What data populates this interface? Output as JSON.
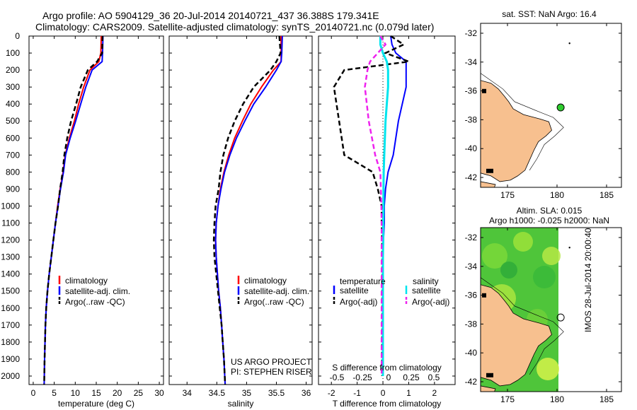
{
  "header": {
    "line1": "Argo profile: AO 5904129_36 20-Jul-2014 20140721_437 36.388S 179.341E",
    "line2": "Climatology: CARS2009. Satellite-adjusted climatology: synTS_20140721.nc (0.079d later)"
  },
  "colors": {
    "climatology": "#ff0000",
    "satellite": "#0000ff",
    "argo": "#000000",
    "sal_satellite": "#00e5ee",
    "sal_argo": "#ee22ee",
    "land": "#f7c08f",
    "marker": "#2ecc2e"
  },
  "depth_axis": {
    "ticks": [
      0,
      100,
      200,
      300,
      400,
      500,
      600,
      700,
      800,
      900,
      1000,
      1100,
      1200,
      1300,
      1400,
      1500,
      1600,
      1700,
      1800,
      1900,
      2000
    ],
    "range": [
      0,
      2050
    ]
  },
  "chart_data": [
    {
      "type": "line",
      "panel": "temperature",
      "xlabel": "temperature (deg C)",
      "xlim": [
        -1,
        31
      ],
      "xticks": [
        0,
        5,
        10,
        15,
        20,
        25,
        30
      ],
      "legend": [
        "climatology",
        "satellite-adj. clim.",
        "Argo(..raw -QC)"
      ],
      "series": [
        {
          "name": "climatology",
          "x": [
            16.2,
            16.1,
            15.6,
            13.5,
            12.0,
            10.8,
            9.8,
            8.6,
            7.6,
            7.1,
            6.4,
            5.8,
            5.3,
            4.8,
            4.3,
            3.8,
            3.4,
            3.1,
            2.9,
            2.8,
            2.7,
            2.6
          ],
          "y": [
            0,
            100,
            150,
            200,
            300,
            400,
            500,
            600,
            700,
            800,
            900,
            1000,
            1100,
            1200,
            1300,
            1400,
            1500,
            1600,
            1700,
            1800,
            1900,
            2050
          ]
        },
        {
          "name": "satellite-adj. clim.",
          "x": [
            16.6,
            16.5,
            16.4,
            14.0,
            12.5,
            11.3,
            10.1,
            8.8,
            7.7,
            7.2,
            6.5,
            5.9,
            5.3,
            4.8,
            4.3,
            3.8,
            3.4,
            3.1,
            2.9,
            2.8,
            2.7,
            2.6
          ],
          "y": [
            0,
            100,
            150,
            200,
            300,
            400,
            500,
            600,
            700,
            800,
            900,
            1000,
            1100,
            1200,
            1300,
            1400,
            1500,
            1600,
            1700,
            1800,
            1900,
            2050
          ]
        },
        {
          "name": "Argo(..raw -QC)",
          "x": [
            16.5,
            16.4,
            15.2,
            13.0,
            11.3,
            10.2,
            9.0,
            8.1,
            7.4,
            7.0,
            6.4,
            5.9,
            5.3,
            4.8,
            4.3,
            3.8,
            3.4,
            3.1,
            2.9,
            2.8,
            2.7,
            2.6
          ],
          "y": [
            0,
            100,
            150,
            200,
            300,
            400,
            500,
            600,
            700,
            800,
            900,
            1000,
            1100,
            1200,
            1300,
            1400,
            1500,
            1600,
            1700,
            1800,
            1900,
            2050
          ]
        }
      ]
    },
    {
      "type": "line",
      "panel": "salinity",
      "xlabel": "salinity",
      "xlim": [
        33.7,
        36.1
      ],
      "xticks": [
        34,
        34.5,
        35,
        35.5,
        36
      ],
      "legend": [
        "climatology",
        "satellite-adj. clim.",
        "Argo(..raw -QC)"
      ],
      "annotation": [
        "US ARGO PROJECT",
        "PI: STEPHEN RISER"
      ],
      "series": [
        {
          "name": "climatology",
          "x": [
            35.58,
            35.58,
            35.58,
            35.45,
            35.25,
            35.07,
            34.93,
            34.8,
            34.7,
            34.62,
            34.56,
            34.52,
            34.49,
            34.48,
            34.49,
            34.51,
            34.53,
            34.56,
            34.58,
            34.6,
            34.62,
            34.64
          ],
          "y": [
            0,
            100,
            150,
            200,
            300,
            400,
            500,
            600,
            700,
            800,
            900,
            1000,
            1100,
            1200,
            1300,
            1400,
            1500,
            1600,
            1700,
            1800,
            1900,
            2050
          ]
        },
        {
          "name": "satellite-adj. clim.",
          "x": [
            35.6,
            35.59,
            35.58,
            35.5,
            35.32,
            35.12,
            34.97,
            34.83,
            34.72,
            34.63,
            34.57,
            34.52,
            34.49,
            34.48,
            34.49,
            34.51,
            34.53,
            34.56,
            34.58,
            34.6,
            34.62,
            34.64
          ],
          "y": [
            0,
            100,
            150,
            200,
            300,
            400,
            500,
            600,
            700,
            800,
            900,
            1000,
            1100,
            1200,
            1300,
            1400,
            1500,
            1600,
            1700,
            1800,
            1900,
            2050
          ]
        },
        {
          "name": "Argo(..raw -QC)",
          "x": [
            35.55,
            35.57,
            35.5,
            35.4,
            35.12,
            34.94,
            34.8,
            34.69,
            34.61,
            34.56,
            34.53,
            34.48,
            34.46,
            34.45,
            34.46,
            34.49,
            34.52,
            34.55,
            34.58,
            34.6,
            34.62,
            34.64
          ],
          "y": [
            0,
            100,
            150,
            200,
            300,
            400,
            500,
            600,
            700,
            800,
            900,
            1000,
            1100,
            1200,
            1300,
            1400,
            1500,
            1600,
            1700,
            1800,
            1900,
            2050
          ]
        }
      ]
    },
    {
      "type": "line",
      "panel": "difference",
      "xlabel": "T difference from climatology",
      "x2label": "S difference from climatology",
      "xlim": [
        -2.5,
        2.8
      ],
      "xticks": [
        -2,
        -1,
        0,
        1,
        2
      ],
      "x2ticks": [
        -0.5,
        -0.25,
        0,
        0.25,
        0.5
      ],
      "legend_titles": [
        "temperature",
        "salinity"
      ],
      "legend": [
        "satellite",
        "Argo(-adj)",
        "satellite",
        "Argo(-adj)"
      ],
      "series": [
        {
          "name": "temperature satellite",
          "x": [
            0.3,
            0.35,
            0.5,
            0.9,
            0.9,
            0.9,
            0.6,
            0.4,
            0.2,
            0.1,
            0.05,
            0.05,
            0.02,
            0.0,
            0.0,
            0.0,
            0.0,
            0.0,
            0.0,
            0.0
          ],
          "y": [
            0,
            50,
            100,
            150,
            200,
            300,
            500,
            700,
            800,
            900,
            1000,
            1100,
            1200,
            1300,
            1400,
            1500,
            1600,
            1700,
            1800,
            2000
          ]
        },
        {
          "name": "temperature Argo(-adj)",
          "x": [
            0.3,
            0.8,
            0.1,
            1.0,
            -1.5,
            -1.9,
            -1.7,
            -1.5,
            -0.4,
            -0.2,
            -0.05,
            -0.05,
            -0.03,
            -0.02,
            -0.02,
            -0.02,
            -0.02,
            -0.02,
            -0.03,
            -0.03
          ],
          "y": [
            0,
            50,
            100,
            150,
            200,
            300,
            500,
            700,
            800,
            900,
            1000,
            1100,
            1200,
            1300,
            1400,
            1500,
            1600,
            1700,
            1800,
            2000
          ]
        },
        {
          "name": "salinity satellite",
          "x": [
            -0.1,
            -0.1,
            0.0,
            0.15,
            0.2,
            0.2,
            0.1,
            0.05,
            0.03,
            0.02,
            0.02,
            0.01,
            0.01,
            0.0,
            0.0,
            0.0,
            0.0,
            0.0,
            0.0,
            0.0
          ],
          "y": [
            0,
            50,
            100,
            150,
            200,
            300,
            500,
            700,
            800,
            900,
            1000,
            1100,
            1200,
            1300,
            1400,
            1500,
            1600,
            1700,
            1800,
            2000
          ]
        },
        {
          "name": "salinity Argo(-adj)",
          "x": [
            -0.1,
            0.1,
            -0.2,
            -0.5,
            -0.6,
            -0.7,
            -0.55,
            -0.3,
            -0.1,
            -0.08,
            -0.06,
            -0.05,
            -0.05,
            -0.05,
            -0.05,
            -0.05,
            -0.05,
            -0.05,
            -0.05,
            -0.05
          ],
          "y": [
            0,
            50,
            100,
            150,
            200,
            300,
            500,
            700,
            800,
            900,
            1000,
            1100,
            1200,
            1300,
            1400,
            1500,
            1600,
            1700,
            1800,
            2000
          ]
        }
      ]
    }
  ],
  "maps": {
    "top": {
      "title": "sat. SST: NaN Argo: 16.4",
      "lat_ticks": [
        "-32",
        "-34",
        "-36",
        "-38",
        "-40",
        "-42"
      ],
      "lon_ticks": [
        "175",
        "180",
        "185"
      ]
    },
    "bottom": {
      "title_line1": "Altim. SLA: 0.015",
      "title_line2": "Argo h1000: -0.025 h2000: NaN",
      "lat_ticks": [
        "-32",
        "-34",
        "-36",
        "-38",
        "-40",
        "-42"
      ],
      "lon_ticks": [
        "175",
        "180",
        "185"
      ]
    }
  },
  "footer_stamp": "IMOS 28-Jul-2014 20:00:40"
}
